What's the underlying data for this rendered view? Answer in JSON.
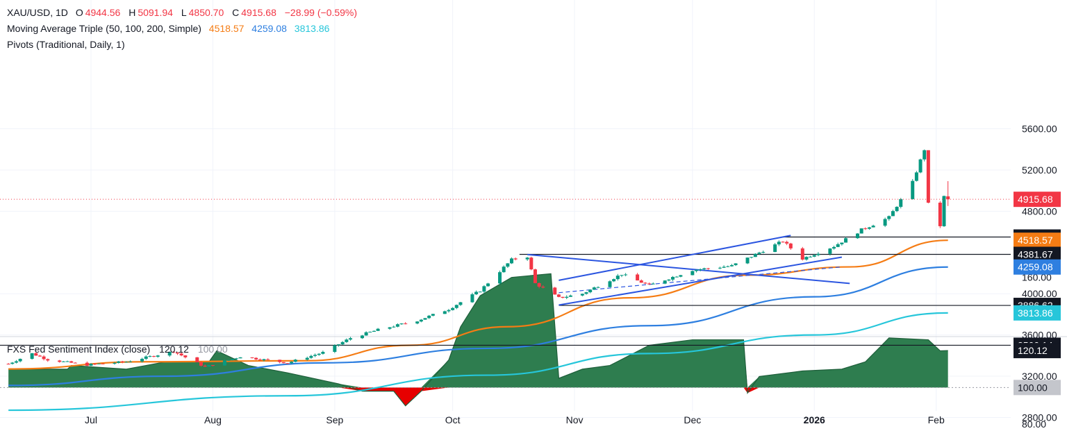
{
  "header": {
    "symbol": "XAU/USD, 1D",
    "o_label": "O",
    "o_value": "4944.56",
    "h_label": "H",
    "h_value": "5091.94",
    "l_label": "L",
    "l_value": "4850.70",
    "c_label": "C",
    "c_value": "4915.68",
    "change": "−28.99 (−0.59%)",
    "ma_label": "Moving Average Triple (50, 100, 200, Simple)",
    "ma50": "4518.57",
    "ma100": "4259.08",
    "ma200": "3813.86",
    "pivots_label": "Pivots (Traditional, Daily, 1)"
  },
  "sub_header": {
    "name": "FXS Fed Sentiment Index (close)",
    "value": "120.12",
    "baseline": "100.00"
  },
  "colors": {
    "up": "#089981",
    "down": "#f23645",
    "ma50": "#f57c14",
    "ma100": "#2e7fe0",
    "ma200": "#26c6da",
    "channel": "#2b55e0",
    "hline": "#131722",
    "sentiment_fill": "#2e7d4f",
    "sentiment_neg": "#e60000"
  },
  "chart_data": [
    {
      "type": "candlestick",
      "title": "XAU/USD, 1D",
      "x_axis": {
        "ticks": [
          "Jul",
          "Aug",
          "Sep",
          "Oct",
          "Nov",
          "Dec",
          "2026",
          "Feb"
        ]
      },
      "y_axis": {
        "ticks": [
          2800,
          3200,
          3600,
          4000,
          4800,
          5200,
          5600
        ],
        "ylim": [
          2550,
          5800
        ]
      },
      "anchors": [
        {
          "date": "Jun 10",
          "close": 3320
        },
        {
          "date": "Jun 16",
          "close": 3420
        },
        {
          "date": "Jun 20",
          "close": 3360
        },
        {
          "date": "Jun 30",
          "close": 3310
        },
        {
          "date": "Jul 10",
          "close": 3340
        },
        {
          "date": "Jul 22",
          "close": 3440
        },
        {
          "date": "Jul 30",
          "close": 3290
        },
        {
          "date": "Aug 8",
          "close": 3390
        },
        {
          "date": "Aug 20",
          "close": 3330
        },
        {
          "date": "Aug 29",
          "close": 3430
        },
        {
          "date": "Sep 5",
          "close": 3570
        },
        {
          "date": "Sep 12",
          "close": 3650
        },
        {
          "date": "Sep 22",
          "close": 3740
        },
        {
          "date": "Sep 30",
          "close": 3850
        },
        {
          "date": "Oct 8",
          "close": 4030
        },
        {
          "date": "Oct 16",
          "close": 4330
        },
        {
          "date": "Oct 20",
          "close": 4360
        },
        {
          "date": "Oct 22",
          "close": 4100
        },
        {
          "date": "Oct 28",
          "close": 3960
        },
        {
          "date": "Nov 3",
          "close": 4000
        },
        {
          "date": "Nov 13",
          "close": 4190
        },
        {
          "date": "Nov 20",
          "close": 4080
        },
        {
          "date": "Dec 1",
          "close": 4230
        },
        {
          "date": "Dec 11",
          "close": 4270
        },
        {
          "date": "Dec 24",
          "close": 4510
        },
        {
          "date": "Dec 29",
          "close": 4340
        },
        {
          "date": "Jan 6",
          "close": 4460
        },
        {
          "date": "Jan 13",
          "close": 4620
        },
        {
          "date": "Jan 20",
          "close": 4740
        },
        {
          "date": "Jan 26",
          "close": 5080
        },
        {
          "date": "Jan 29",
          "close": 5400
        },
        {
          "date": "Jan 30",
          "close": 4870
        },
        {
          "date": "Feb 2",
          "close": 4660
        },
        {
          "date": "Feb 3",
          "close": 4940
        },
        {
          "date": "Feb 4",
          "close": 4915.68
        }
      ],
      "last_candle": {
        "date": "Feb 4",
        "open": 4944.56,
        "high": 5091.94,
        "low": 4850.7,
        "close": 4915.68
      },
      "series": [
        {
          "name": "MA50",
          "points": [
            {
              "date": "Jun 10",
              "value": 3270
            },
            {
              "date": "Jul 15",
              "value": 3340
            },
            {
              "date": "Aug 25",
              "value": 3350
            },
            {
              "date": "Sep 20",
              "value": 3500
            },
            {
              "date": "Oct 15",
              "value": 3680
            },
            {
              "date": "Nov 15",
              "value": 3960
            },
            {
              "date": "Dec 15",
              "value": 4180
            },
            {
              "date": "Jan 10",
              "value": 4260
            },
            {
              "date": "Feb 4",
              "value": 4518.57
            }
          ]
        },
        {
          "name": "MA100",
          "points": [
            {
              "date": "Jun 10",
              "value": 3110
            },
            {
              "date": "Jul 20",
              "value": 3200
            },
            {
              "date": "Aug 30",
              "value": 3330
            },
            {
              "date": "Oct 10",
              "value": 3470
            },
            {
              "date": "Nov 20",
              "value": 3690
            },
            {
              "date": "Jan 1",
              "value": 3970
            },
            {
              "date": "Feb 4",
              "value": 4259.08
            }
          ]
        },
        {
          "name": "MA200",
          "points": [
            {
              "date": "Jun 10",
              "value": 2870
            },
            {
              "date": "Aug 20",
              "value": 3010
            },
            {
              "date": "Oct 10",
              "value": 3210
            },
            {
              "date": "Nov 20",
              "value": 3420
            },
            {
              "date": "Jan 1",
              "value": 3600
            },
            {
              "date": "Feb 4",
              "value": 3813.86
            }
          ]
        }
      ],
      "pivots": [
        {
          "label": "4549.89",
          "value": 4549.89
        },
        {
          "label": "4381.67",
          "value": 4381.67
        },
        {
          "label": "3886.62",
          "value": 3886.62
        },
        {
          "label": "3500.14",
          "value": 3500.14
        }
      ],
      "last_price_label": "4915.68",
      "price_labels": [
        {
          "text": "4915.68",
          "value": 4915.68,
          "color": "#f23645"
        },
        {
          "text": "4549.89",
          "value": 4549.89,
          "color": "#131722"
        },
        {
          "text": "4518.57",
          "value": 4518.57,
          "color": "#f57c14"
        },
        {
          "text": "4381.67",
          "value": 4381.67,
          "color": "#131722"
        },
        {
          "text": "4259.08",
          "value": 4259.08,
          "color": "#2e7fe0"
        },
        {
          "text": "3886.62",
          "value": 3886.62,
          "color": "#131722"
        },
        {
          "text": "3813.86",
          "value": 3813.86,
          "color": "#26c6da"
        },
        {
          "text": "3500.14",
          "value": 3500.14,
          "color": "#131722"
        }
      ],
      "trendlines": [
        {
          "from": {
            "date": "Oct 28",
            "value": 4130
          },
          "to": {
            "date": "Dec 26",
            "value": 4565
          }
        },
        {
          "from": {
            "date": "Oct 28",
            "value": 3890
          },
          "to": {
            "date": "Jan 8",
            "value": 4355
          }
        },
        {
          "from": {
            "date": "Oct 20",
            "value": 4380
          },
          "to": {
            "date": "Jan 10",
            "value": 4100
          }
        },
        {
          "from": {
            "date": "Oct 28",
            "value": 4010
          },
          "to": {
            "date": "Jan 8",
            "value": 4260
          },
          "style": "dashed"
        }
      ]
    },
    {
      "type": "area",
      "title": "FXS Fed Sentiment Index (close)",
      "y_axis": {
        "ticks": [
          80,
          100,
          160
        ],
        "ylim": [
          76,
          168
        ],
        "baseline": 100
      },
      "points": [
        {
          "date": "Jun 10",
          "value": 110
        },
        {
          "date": "Jun 25",
          "value": 110
        },
        {
          "date": "Jun 26",
          "value": 112
        },
        {
          "date": "Jul 10",
          "value": 110
        },
        {
          "date": "Jul 20",
          "value": 114
        },
        {
          "date": "Jul 31",
          "value": 114
        },
        {
          "date": "Aug 2",
          "value": 120
        },
        {
          "date": "Aug 10",
          "value": 112
        },
        {
          "date": "Aug 20",
          "value": 108
        },
        {
          "date": "Sep 2",
          "value": 102
        },
        {
          "date": "Sep 8",
          "value": 98
        },
        {
          "date": "Sep 16",
          "value": 98
        },
        {
          "date": "Sep 19",
          "value": 90
        },
        {
          "date": "Sep 23",
          "value": 98
        },
        {
          "date": "Sep 30",
          "value": 115
        },
        {
          "date": "Oct 3",
          "value": 133
        },
        {
          "date": "Oct 8",
          "value": 150
        },
        {
          "date": "Oct 16",
          "value": 160
        },
        {
          "date": "Oct 26",
          "value": 162
        },
        {
          "date": "Oct 28",
          "value": 105
        },
        {
          "date": "Nov 3",
          "value": 110
        },
        {
          "date": "Nov 10",
          "value": 112
        },
        {
          "date": "Nov 20",
          "value": 123
        },
        {
          "date": "Dec 1",
          "value": 126
        },
        {
          "date": "Dec 14",
          "value": 126
        },
        {
          "date": "Dec 15",
          "value": 97
        },
        {
          "date": "Dec 18",
          "value": 106
        },
        {
          "date": "Dec 29",
          "value": 109
        },
        {
          "date": "Jan 8",
          "value": 110
        },
        {
          "date": "Jan 14",
          "value": 114
        },
        {
          "date": "Jan 20",
          "value": 127
        },
        {
          "date": "Jan 30",
          "value": 126
        },
        {
          "date": "Feb 2",
          "value": 120
        },
        {
          "date": "Feb 4",
          "value": 120.12
        }
      ],
      "value_labels": [
        {
          "text": "120.12",
          "value": 120.12
        },
        {
          "text": "100.00",
          "value": 100.0
        }
      ]
    }
  ]
}
